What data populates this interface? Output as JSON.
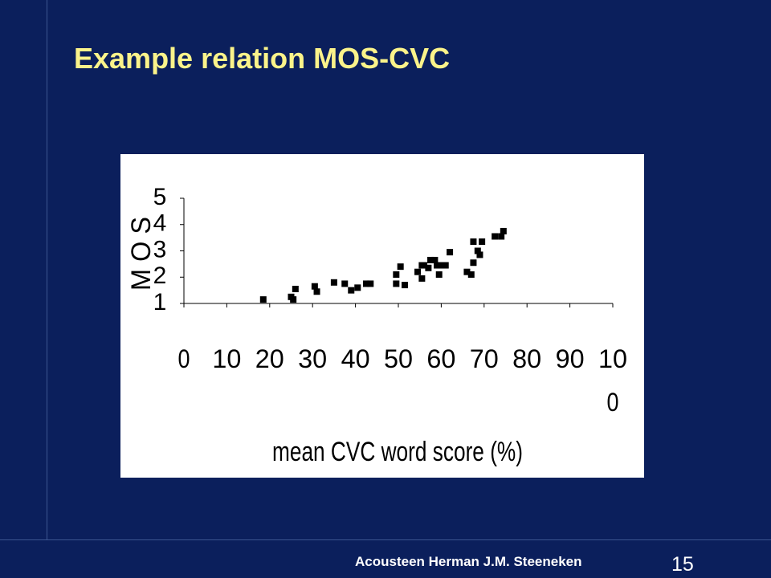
{
  "slide": {
    "title": "Example relation MOS-CVC",
    "footer": "Acousteen Herman J.M. Steeneken",
    "page_number": "15"
  },
  "colors": {
    "background": "#0b1f5c",
    "title": "#fbf38a",
    "chart_background": "#ffffff",
    "marker": "#000000"
  },
  "chart_data": {
    "type": "scatter",
    "title": "",
    "xlabel": "mean CVC word score (%)",
    "ylabel": "M O S",
    "xlim": [
      0,
      100
    ],
    "ylim": [
      1,
      5
    ],
    "x_ticks": [
      0,
      10,
      20,
      30,
      40,
      50,
      60,
      70,
      80,
      90,
      100
    ],
    "x_tick_labels": [
      "0",
      "10",
      "20",
      "30",
      "40",
      "50",
      "60",
      "70",
      "80",
      "90",
      "10\n0"
    ],
    "y_ticks": [
      1,
      2,
      3,
      4,
      5
    ],
    "y_tick_labels": [
      "1",
      "2",
      "3",
      "4",
      "5"
    ],
    "grid": false,
    "legend": "none",
    "series": [
      {
        "marker": "square",
        "points": [
          [
            18.5,
            1.15
          ],
          [
            25,
            1.25
          ],
          [
            25.5,
            1.15
          ],
          [
            26,
            1.55
          ],
          [
            30.5,
            1.65
          ],
          [
            31,
            1.45
          ],
          [
            35,
            1.8
          ],
          [
            37.5,
            1.75
          ],
          [
            39,
            1.5
          ],
          [
            40.5,
            1.6
          ],
          [
            42.5,
            1.75
          ],
          [
            43.5,
            1.75
          ],
          [
            49.5,
            2.1
          ],
          [
            49.5,
            1.75
          ],
          [
            50.5,
            2.4
          ],
          [
            51.5,
            1.7
          ],
          [
            54.5,
            2.2
          ],
          [
            55.5,
            1.95
          ],
          [
            55.5,
            2.45
          ],
          [
            56,
            2.45
          ],
          [
            57,
            2.35
          ],
          [
            57.5,
            2.65
          ],
          [
            58.5,
            2.65
          ],
          [
            59,
            2.45
          ],
          [
            59.5,
            2.1
          ],
          [
            60,
            2.45
          ],
          [
            61,
            2.45
          ],
          [
            62,
            2.95
          ],
          [
            66,
            2.2
          ],
          [
            67,
            2.1
          ],
          [
            67.5,
            2.55
          ],
          [
            67.5,
            3.35
          ],
          [
            68.5,
            3.0
          ],
          [
            69,
            2.85
          ],
          [
            69.5,
            3.35
          ],
          [
            72.5,
            3.55
          ],
          [
            74,
            3.55
          ],
          [
            74.5,
            3.75
          ]
        ]
      }
    ]
  }
}
